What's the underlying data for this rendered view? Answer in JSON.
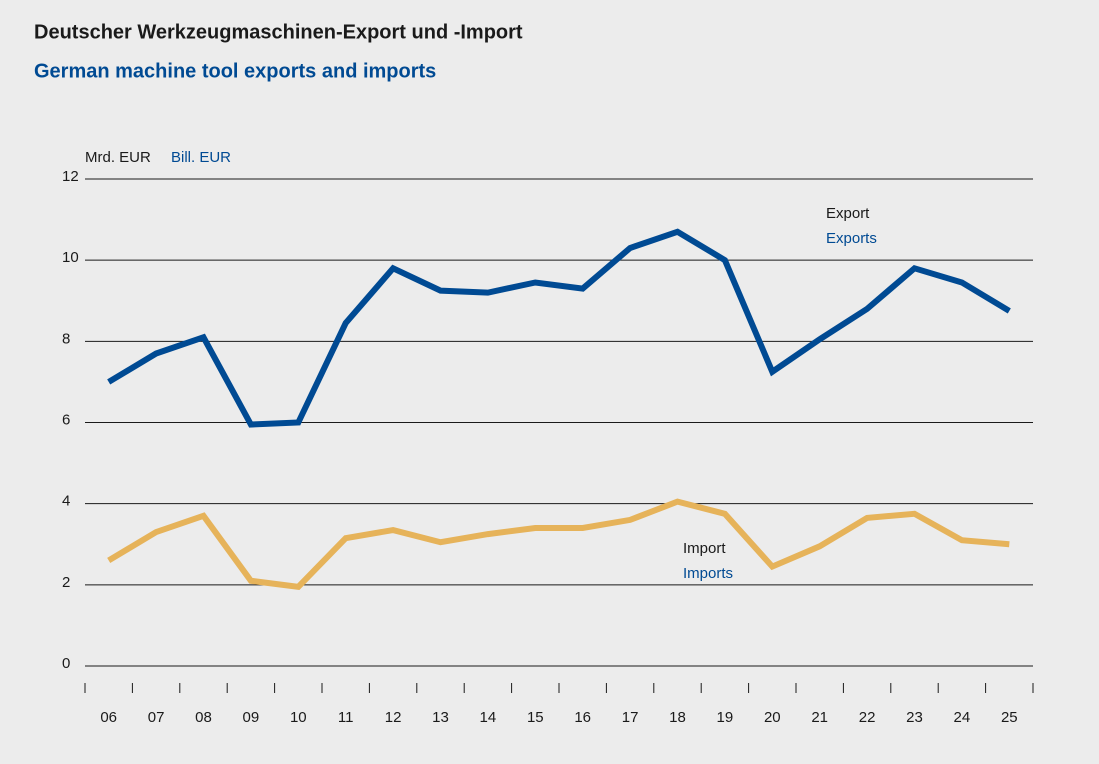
{
  "chart_data": {
    "type": "line",
    "title": "Deutscher Werkzeugmaschinen-Export und -Import",
    "subtitle": "German machine tool exports and imports",
    "unit_label": "Mrd. EUR",
    "unit_label_en": "Bill. EUR",
    "categories": [
      "06",
      "07",
      "08",
      "09",
      "10",
      "11",
      "12",
      "13",
      "14",
      "15",
      "16",
      "17",
      "18",
      "19",
      "20",
      "21",
      "22",
      "23",
      "24",
      "25"
    ],
    "series": [
      {
        "name": "Export",
        "name_en": "Exports",
        "color": "#004a93",
        "values": [
          7.0,
          7.7,
          8.1,
          5.95,
          6.0,
          8.45,
          9.8,
          9.25,
          9.2,
          9.45,
          9.3,
          10.3,
          10.7,
          10.0,
          7.25,
          8.05,
          8.8,
          9.8,
          9.45,
          8.75
        ]
      },
      {
        "name": "Import",
        "name_en": "Imports",
        "color": "#e6b35a",
        "values": [
          2.6,
          3.3,
          3.7,
          2.1,
          1.95,
          3.15,
          3.35,
          3.05,
          3.25,
          3.4,
          3.4,
          3.6,
          4.05,
          3.75,
          2.45,
          2.95,
          3.65,
          3.75,
          3.1,
          3.0
        ]
      }
    ],
    "ylim": [
      0,
      12
    ],
    "yticks": [
      0,
      2,
      4,
      6,
      8,
      10,
      12
    ],
    "grid": true
  }
}
